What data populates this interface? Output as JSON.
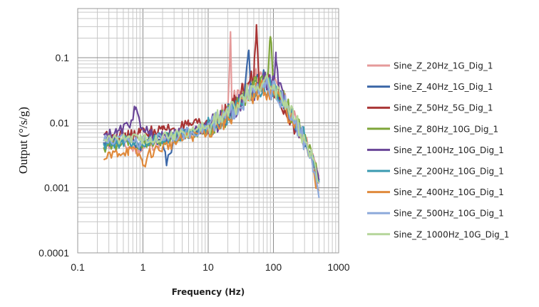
{
  "chart_data": {
    "type": "line",
    "title": "",
    "xlabel": "Frequency (Hz)",
    "ylabel": "Output (°/s/g)",
    "xscale": "log",
    "yscale": "log",
    "xlim": [
      0.1,
      1000
    ],
    "ylim": [
      0.0001,
      0.5
    ],
    "x_ticks": [
      "0.1",
      "1",
      "10",
      "100",
      "1000"
    ],
    "y_ticks": [
      "0.0001",
      "0.001",
      "0.01",
      "0.1"
    ],
    "grid": true,
    "legend_position": "right",
    "series": [
      {
        "name": "Sine_Z_20Hz_1G_Dig_1",
        "color": "#e59a9a",
        "points": [
          [
            0.25,
            0.0045
          ],
          [
            0.4,
            0.005
          ],
          [
            0.6,
            0.0042
          ],
          [
            0.9,
            0.0038
          ],
          [
            1.3,
            0.0045
          ],
          [
            2,
            0.005
          ],
          [
            3,
            0.006
          ],
          [
            5,
            0.007
          ],
          [
            8,
            0.008
          ],
          [
            12,
            0.01
          ],
          [
            16,
            0.013
          ],
          [
            20,
            0.016
          ],
          [
            22,
            0.25
          ],
          [
            23,
            0.02
          ],
          [
            30,
            0.026
          ],
          [
            40,
            0.035
          ],
          [
            50,
            0.045
          ],
          [
            60,
            0.055
          ],
          [
            80,
            0.05
          ],
          [
            100,
            0.038
          ],
          [
            150,
            0.02
          ],
          [
            200,
            0.012
          ],
          [
            300,
            0.006
          ],
          [
            400,
            0.003
          ],
          [
            500,
            0.0015
          ]
        ]
      },
      {
        "name": "Sine_Z_40Hz_1G_Dig_1",
        "color": "#3c68a8",
        "points": [
          [
            0.25,
            0.005
          ],
          [
            0.4,
            0.0055
          ],
          [
            0.6,
            0.006
          ],
          [
            0.9,
            0.0045
          ],
          [
            1.3,
            0.006
          ],
          [
            2,
            0.0055
          ],
          [
            2.3,
            0.0022
          ],
          [
            3,
            0.006
          ],
          [
            5,
            0.007
          ],
          [
            8,
            0.008
          ],
          [
            12,
            0.009
          ],
          [
            18,
            0.012
          ],
          [
            25,
            0.018
          ],
          [
            35,
            0.025
          ],
          [
            42,
            0.13
          ],
          [
            45,
            0.03
          ],
          [
            60,
            0.05
          ],
          [
            80,
            0.045
          ],
          [
            100,
            0.035
          ],
          [
            150,
            0.02
          ],
          [
            200,
            0.011
          ],
          [
            300,
            0.0055
          ],
          [
            400,
            0.0025
          ],
          [
            500,
            0.0012
          ]
        ]
      },
      {
        "name": "Sine_Z_50Hz_5G_Dig_1",
        "color": "#a83434",
        "points": [
          [
            0.25,
            0.0065
          ],
          [
            0.4,
            0.0068
          ],
          [
            0.6,
            0.0062
          ],
          [
            0.9,
            0.007
          ],
          [
            1.3,
            0.0075
          ],
          [
            2,
            0.0078
          ],
          [
            3,
            0.0082
          ],
          [
            5,
            0.009
          ],
          [
            8,
            0.0095
          ],
          [
            12,
            0.0115
          ],
          [
            18,
            0.014
          ],
          [
            25,
            0.02
          ],
          [
            35,
            0.03
          ],
          [
            50,
            0.05
          ],
          [
            55,
            0.32
          ],
          [
            60,
            0.045
          ],
          [
            80,
            0.042
          ],
          [
            100,
            0.034
          ],
          [
            150,
            0.018
          ],
          [
            200,
            0.01
          ],
          [
            300,
            0.005
          ],
          [
            400,
            0.0025
          ],
          [
            500,
            0.0012
          ]
        ]
      },
      {
        "name": "Sine_Z_80Hz_10G_Dig_1",
        "color": "#7fa63a",
        "points": [
          [
            0.25,
            0.0042
          ],
          [
            0.4,
            0.0045
          ],
          [
            0.6,
            0.005
          ],
          [
            0.9,
            0.0048
          ],
          [
            1.3,
            0.0052
          ],
          [
            2,
            0.0055
          ],
          [
            3,
            0.006
          ],
          [
            5,
            0.0065
          ],
          [
            8,
            0.0075
          ],
          [
            12,
            0.009
          ],
          [
            18,
            0.012
          ],
          [
            25,
            0.017
          ],
          [
            35,
            0.024
          ],
          [
            50,
            0.035
          ],
          [
            70,
            0.045
          ],
          [
            80,
            0.05
          ],
          [
            90,
            0.21
          ],
          [
            100,
            0.04
          ],
          [
            150,
            0.022
          ],
          [
            200,
            0.012
          ],
          [
            300,
            0.006
          ],
          [
            400,
            0.003
          ],
          [
            500,
            0.0013
          ]
        ]
      },
      {
        "name": "Sine_Z_100Hz_10G_Dig_1",
        "color": "#6a4698",
        "points": [
          [
            0.25,
            0.0065
          ],
          [
            0.4,
            0.0068
          ],
          [
            0.6,
            0.009
          ],
          [
            0.75,
            0.016
          ],
          [
            0.9,
            0.01
          ],
          [
            1.3,
            0.0065
          ],
          [
            2,
            0.006
          ],
          [
            3,
            0.0065
          ],
          [
            5,
            0.0072
          ],
          [
            8,
            0.0082
          ],
          [
            12,
            0.0095
          ],
          [
            18,
            0.012
          ],
          [
            25,
            0.016
          ],
          [
            35,
            0.022
          ],
          [
            50,
            0.03
          ],
          [
            70,
            0.04
          ],
          [
            100,
            0.045
          ],
          [
            110,
            0.09
          ],
          [
            120,
            0.035
          ],
          [
            150,
            0.02
          ],
          [
            200,
            0.011
          ],
          [
            300,
            0.0055
          ],
          [
            400,
            0.0028
          ],
          [
            500,
            0.0013
          ]
        ]
      },
      {
        "name": "Sine_Z_200Hz_10G_Dig_1",
        "color": "#3a9ab0",
        "points": [
          [
            0.25,
            0.0048
          ],
          [
            0.4,
            0.005
          ],
          [
            0.6,
            0.0052
          ],
          [
            0.9,
            0.0045
          ],
          [
            1.3,
            0.0055
          ],
          [
            2,
            0.0058
          ],
          [
            3,
            0.006
          ],
          [
            5,
            0.0068
          ],
          [
            8,
            0.0078
          ],
          [
            12,
            0.0092
          ],
          [
            18,
            0.012
          ],
          [
            25,
            0.016
          ],
          [
            35,
            0.022
          ],
          [
            50,
            0.03
          ],
          [
            70,
            0.036
          ],
          [
            100,
            0.034
          ],
          [
            150,
            0.02
          ],
          [
            200,
            0.013
          ],
          [
            300,
            0.006
          ],
          [
            400,
            0.0028
          ],
          [
            500,
            0.0013
          ]
        ]
      },
      {
        "name": "Sine_Z_400Hz_10G_Dig_1",
        "color": "#e08a3c",
        "points": [
          [
            0.25,
            0.0027
          ],
          [
            0.4,
            0.0035
          ],
          [
            0.6,
            0.0038
          ],
          [
            0.9,
            0.0032
          ],
          [
            1.0,
            0.0022
          ],
          [
            1.3,
            0.0035
          ],
          [
            2,
            0.0042
          ],
          [
            3,
            0.005
          ],
          [
            5,
            0.006
          ],
          [
            8,
            0.007
          ],
          [
            12,
            0.0085
          ],
          [
            18,
            0.011
          ],
          [
            25,
            0.015
          ],
          [
            35,
            0.02
          ],
          [
            50,
            0.028
          ],
          [
            70,
            0.033
          ],
          [
            100,
            0.03
          ],
          [
            150,
            0.018
          ],
          [
            200,
            0.01
          ],
          [
            300,
            0.005
          ],
          [
            400,
            0.0022
          ],
          [
            450,
            0.0011
          ],
          [
            500,
            0.0009
          ]
        ]
      },
      {
        "name": "Sine_Z_500Hz_10G_Dig_1",
        "color": "#8eaadb",
        "points": [
          [
            0.25,
            0.0052
          ],
          [
            0.4,
            0.0055
          ],
          [
            0.6,
            0.0058
          ],
          [
            0.9,
            0.005
          ],
          [
            1.3,
            0.0056
          ],
          [
            2,
            0.006
          ],
          [
            3,
            0.0064
          ],
          [
            5,
            0.007
          ],
          [
            8,
            0.008
          ],
          [
            12,
            0.0095
          ],
          [
            18,
            0.012
          ],
          [
            25,
            0.016
          ],
          [
            35,
            0.022
          ],
          [
            50,
            0.03
          ],
          [
            70,
            0.035
          ],
          [
            100,
            0.032
          ],
          [
            150,
            0.019
          ],
          [
            200,
            0.011
          ],
          [
            300,
            0.0052
          ],
          [
            400,
            0.0022
          ],
          [
            500,
            0.0007
          ]
        ]
      },
      {
        "name": "Sine_Z_1000Hz_10G_Dig_1",
        "color": "#b5d69a",
        "points": [
          [
            0.25,
            0.0055
          ],
          [
            0.4,
            0.0058
          ],
          [
            0.6,
            0.006
          ],
          [
            0.9,
            0.0055
          ],
          [
            1.3,
            0.006
          ],
          [
            2,
            0.0062
          ],
          [
            3,
            0.0066
          ],
          [
            5,
            0.0072
          ],
          [
            8,
            0.0085
          ],
          [
            12,
            0.01
          ],
          [
            18,
            0.013
          ],
          [
            25,
            0.018
          ],
          [
            35,
            0.025
          ],
          [
            50,
            0.035
          ],
          [
            70,
            0.042
          ],
          [
            100,
            0.038
          ],
          [
            150,
            0.022
          ],
          [
            200,
            0.012
          ],
          [
            300,
            0.0058
          ],
          [
            400,
            0.0028
          ],
          [
            500,
            0.0012
          ]
        ]
      }
    ]
  }
}
